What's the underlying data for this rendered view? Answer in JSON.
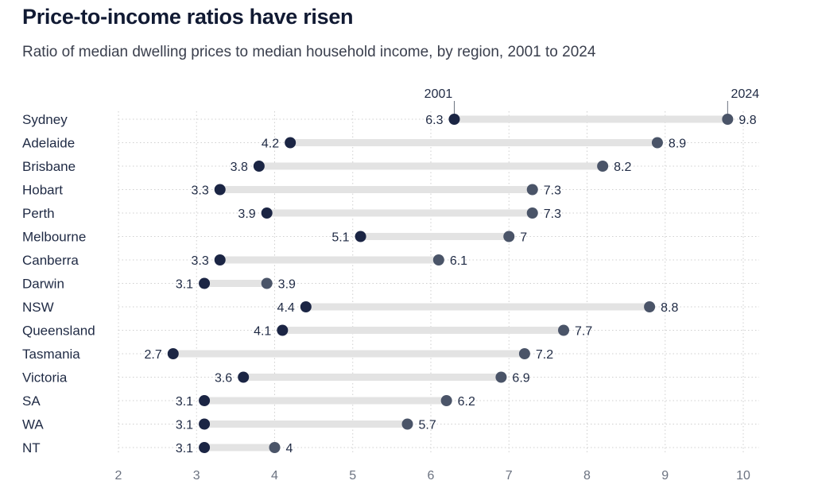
{
  "title": "Price-to-income ratios have risen",
  "subtitle": "Ratio of median dwelling prices to median household income, by region, 2001 to 2024",
  "colors": {
    "start_dot": "#1b2544",
    "end_dot": "#4a5468",
    "bar": "#e3e3e3",
    "grid": "#cfcfcf"
  },
  "chart_data": {
    "type": "dumbbell",
    "title": "Price-to-income ratios have risen",
    "subtitle": "Ratio of median dwelling prices to median household income, by region, 2001 to 2024",
    "series": [
      {
        "name": "2001",
        "values": [
          6.3,
          4.2,
          3.8,
          3.3,
          3.9,
          5.1,
          3.3,
          3.1,
          4.4,
          4.1,
          2.7,
          3.6,
          3.1,
          3.1,
          3.1
        ]
      },
      {
        "name": "2024",
        "values": [
          9.8,
          8.9,
          8.2,
          7.3,
          7.3,
          7,
          6.1,
          3.9,
          8.8,
          7.7,
          7.2,
          6.9,
          6.2,
          5.7,
          4
        ]
      }
    ],
    "categories": [
      "Sydney",
      "Adelaide",
      "Brisbane",
      "Hobart",
      "Perth",
      "Melbourne",
      "Canberra",
      "Darwin",
      "NSW",
      "Queensland",
      "Tasmania",
      "Victoria",
      "SA",
      "WA",
      "NT"
    ],
    "xlim": [
      2,
      10
    ],
    "xticks": [
      2,
      3,
      4,
      5,
      6,
      7,
      8,
      9,
      10
    ],
    "grid": true,
    "legend": "direct labels above the first row"
  }
}
